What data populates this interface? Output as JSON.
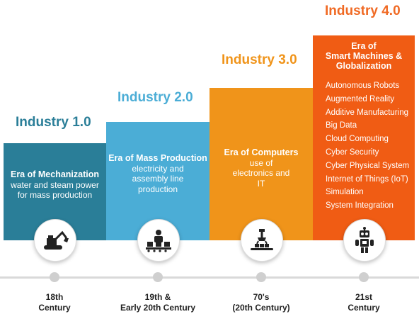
{
  "colors": {
    "industry1": "#2a7e98",
    "industry2": "#4badd6",
    "industry3": "#f0941a",
    "industry4": "#f05c14",
    "title1": "#2a7e98",
    "title2": "#4badd6",
    "title3": "#f0941a",
    "title4": "#f06a24"
  },
  "stages": [
    {
      "title": "Industry 1.0",
      "heading": "Era of Mechanization",
      "description": "water and steam power for mass production",
      "icon": "excavator-icon",
      "period": "18th\nCentury"
    },
    {
      "title": "Industry 2.0",
      "heading": "Era of Mass Production",
      "description": "electricity and assembly line production",
      "icon": "assembly-line-worker-icon",
      "period": "19th &\nEarly 20th Century"
    },
    {
      "title": "Industry 3.0",
      "heading": "Era of Computers",
      "description": "use of electronics and IT",
      "icon": "robotic-arm-conveyor-icon",
      "period": "70's\n(20th Century)"
    },
    {
      "title": "Industry 4.0",
      "heading": "Era of\nSmart Machines &\nGlobalization",
      "technologies": [
        "Autonomous Robots",
        "Augmented Reality",
        "Additive Manufacturing",
        "Big Data",
        "Cloud Computing",
        "Cyber Security",
        "Cyber Physical System",
        "Internet of Things (IoT)",
        "Simulation",
        "System Integration"
      ],
      "icon": "robot-icon",
      "period": "21st\nCentury"
    }
  ]
}
